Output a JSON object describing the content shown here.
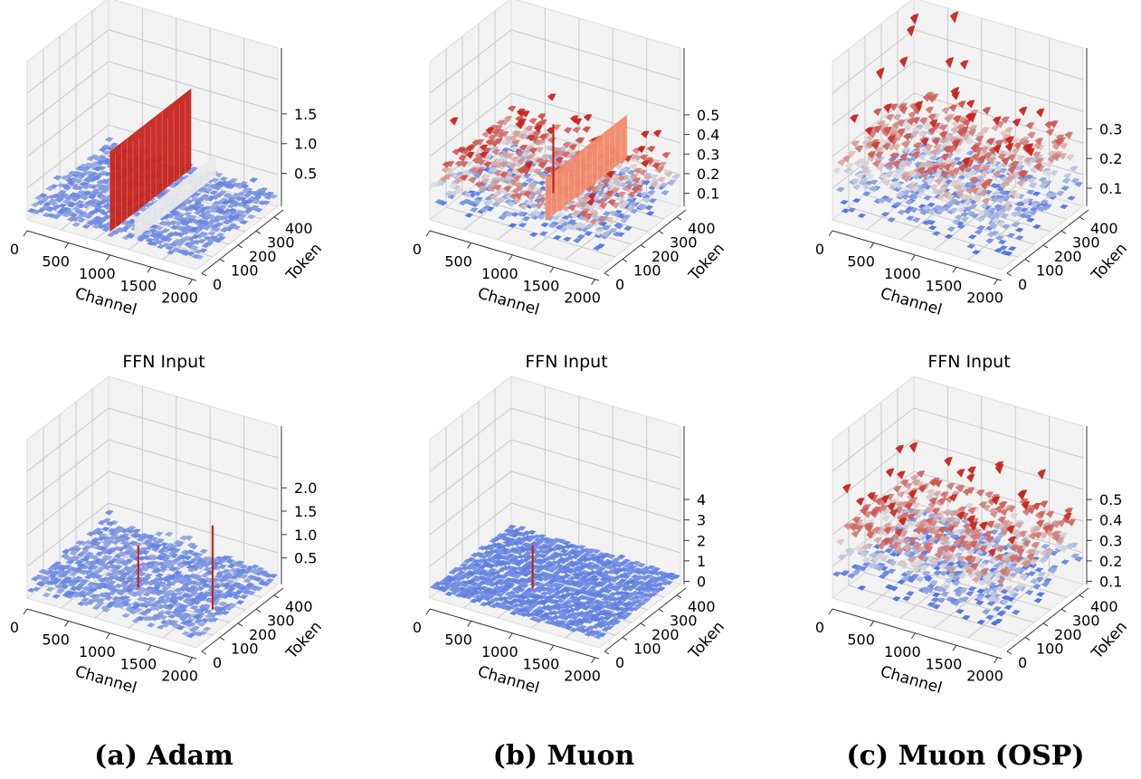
{
  "chart_data": [
    {
      "type": "surface3d",
      "panel": "Adam, top",
      "title": "",
      "xlabel": "Channel",
      "ylabel": "Token",
      "x_ticks": [
        "0",
        "500",
        "1000",
        "1500",
        "2000"
      ],
      "y_ticks": [
        "0",
        "100",
        "200",
        "300",
        "400"
      ],
      "z_ticks": [
        "0.5",
        "1.0",
        "1.5"
      ],
      "xlim": [
        0,
        2048
      ],
      "ylim": [
        0,
        450
      ],
      "zlim": [
        0,
        1.65
      ],
      "baseline": 0.15,
      "noise": 0.08,
      "spikes": [
        {
          "channel": 1000,
          "height": 1.5,
          "kind": "wall",
          "color": "#c7241d"
        },
        {
          "channel": 1300,
          "height": 0.5,
          "kind": "wall",
          "color": "#e8e8e8"
        }
      ]
    },
    {
      "type": "surface3d",
      "panel": "Muon, top",
      "title": "",
      "xlabel": "Channel",
      "ylabel": "Token",
      "x_ticks": [
        "0",
        "500",
        "1000",
        "1500",
        "2000"
      ],
      "y_ticks": [
        "0",
        "100",
        "200",
        "300",
        "400"
      ],
      "z_ticks": [
        "0.1",
        "0.2",
        "0.3",
        "0.4",
        "0.5"
      ],
      "xlim": [
        0,
        2048
      ],
      "ylim": [
        0,
        450
      ],
      "zlim": [
        0.05,
        0.55
      ],
      "baseline": 0.2,
      "noise": 0.1,
      "spikes": [
        {
          "channel": 1400,
          "height": 0.42,
          "kind": "wall",
          "color": "#f08a6a"
        },
        {
          "channel": 1150,
          "height": 0.55,
          "kind": "spike",
          "color": "#c7241d"
        }
      ]
    },
    {
      "type": "surface3d",
      "panel": "Muon (OSP), top",
      "title": "",
      "xlabel": "Channel",
      "ylabel": "Token",
      "x_ticks": [
        "0",
        "500",
        "1000",
        "1500",
        "2000"
      ],
      "y_ticks": [
        "0",
        "100",
        "200",
        "300",
        "400"
      ],
      "z_ticks": [
        "0.1",
        "0.2",
        "0.3"
      ],
      "xlim": [
        0,
        2048
      ],
      "ylim": [
        0,
        450
      ],
      "zlim": [
        0.05,
        0.38
      ],
      "baseline": 0.18,
      "noise": 0.12,
      "spikes": []
    },
    {
      "type": "surface3d",
      "panel": "Adam, bottom",
      "title": "FFN Input",
      "xlabel": "Channel",
      "ylabel": "Token",
      "x_ticks": [
        "0",
        "500",
        "1000",
        "1500",
        "2000"
      ],
      "y_ticks": [
        "0",
        "100",
        "200",
        "300",
        "400"
      ],
      "z_ticks": [
        "0.5",
        "1.0",
        "1.5",
        "2.0"
      ],
      "xlim": [
        0,
        2048
      ],
      "ylim": [
        0,
        450
      ],
      "zlim": [
        0,
        2.1
      ],
      "baseline": 0.2,
      "noise": 0.12,
      "spikes": [
        {
          "channel": 1000,
          "height": 1.1,
          "kind": "spike",
          "color": "#c7241d"
        },
        {
          "channel": 1900,
          "height": 2.0,
          "kind": "spike",
          "color": "#c7241d"
        }
      ]
    },
    {
      "type": "surface3d",
      "panel": "Muon, bottom",
      "title": "FFN Input",
      "xlabel": "Channel",
      "ylabel": "Token",
      "x_ticks": [
        "0",
        "500",
        "1000",
        "1500",
        "2000"
      ],
      "y_ticks": [
        "0",
        "100",
        "200",
        "300",
        "400"
      ],
      "z_ticks": [
        "0",
        "1",
        "2",
        "3",
        "4"
      ],
      "xlim": [
        0,
        2048
      ],
      "ylim": [
        0,
        450
      ],
      "zlim": [
        0,
        4.8
      ],
      "baseline": 0.3,
      "noise": 0.08,
      "spikes": [
        {
          "channel": 900,
          "height": 2.4,
          "kind": "spike",
          "color": "#c7241d"
        }
      ]
    },
    {
      "type": "surface3d",
      "panel": "Muon (OSP), bottom",
      "title": "FFN Input",
      "xlabel": "Channel",
      "ylabel": "Token",
      "x_ticks": [
        "0",
        "500",
        "1000",
        "1500",
        "2000"
      ],
      "y_ticks": [
        "0",
        "100",
        "200",
        "300",
        "400"
      ],
      "z_ticks": [
        "0.1",
        "0.2",
        "0.3",
        "0.4",
        "0.5"
      ],
      "xlim": [
        0,
        2048
      ],
      "ylim": [
        0,
        450
      ],
      "zlim": [
        0.1,
        0.58
      ],
      "baseline": 0.3,
      "noise": 0.14,
      "spikes": []
    }
  ],
  "captions": [
    "(a) Adam",
    "(b) Muon",
    "(c) Muon (OSP)"
  ],
  "colors": {
    "low": "#4a6fe3",
    "mid": "#dddddd",
    "high": "#c7241d"
  }
}
